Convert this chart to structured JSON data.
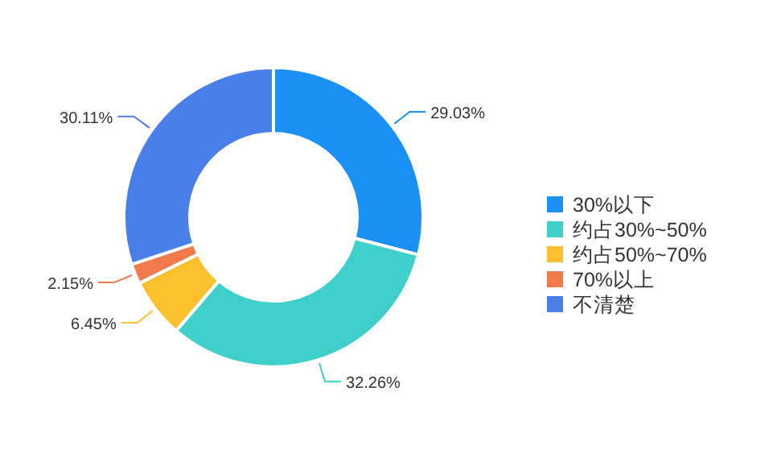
{
  "chart_data": {
    "type": "donut",
    "categories": [
      "30%以下",
      "约占30%~50%",
      "约占50%~70%",
      "70%以上",
      "不清楚"
    ],
    "values": [
      29.03,
      32.26,
      6.45,
      2.15,
      30.11
    ],
    "colors": [
      "#1a90f5",
      "#3ecfca",
      "#fbc02d",
      "#f07a4a",
      "#4a7ee8"
    ],
    "value_labels": [
      "29.03%",
      "32.26%",
      "6.45%",
      "2.15%",
      "30.11%"
    ],
    "legend": "right"
  }
}
